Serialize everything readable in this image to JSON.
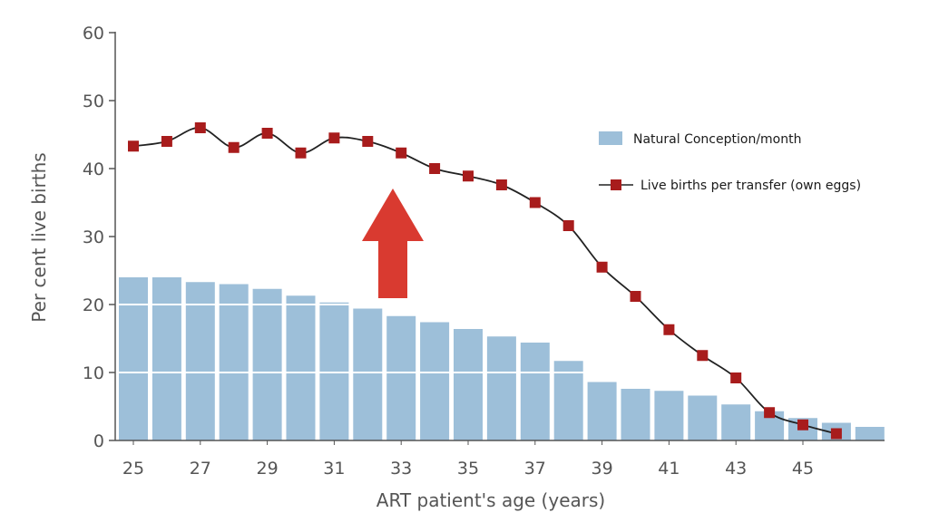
{
  "chart_data": {
    "type": "bar",
    "title": "",
    "xlabel": "ART patient's age (years)",
    "ylabel": "Per cent live births",
    "ylim": [
      0,
      60
    ],
    "yticks": [
      0,
      10,
      20,
      30,
      40,
      50,
      60
    ],
    "xticks": [
      25,
      27,
      29,
      31,
      33,
      35,
      37,
      39,
      41,
      43,
      45
    ],
    "legend_position": "right",
    "grid": false,
    "series": [
      {
        "name": "Natural Conception/month",
        "type": "bar",
        "color": "#9dbfd9",
        "points": [
          {
            "x": 25,
            "y": 24
          },
          {
            "x": 26,
            "y": 24
          },
          {
            "x": 27,
            "y": 23.3
          },
          {
            "x": 28,
            "y": 23
          },
          {
            "x": 29,
            "y": 22.3
          },
          {
            "x": 30,
            "y": 21.3
          },
          {
            "x": 31,
            "y": 20.3
          },
          {
            "x": 32,
            "y": 19.4
          },
          {
            "x": 33,
            "y": 18.3
          },
          {
            "x": 34,
            "y": 17.4
          },
          {
            "x": 35,
            "y": 16.4
          },
          {
            "x": 36,
            "y": 15.3
          },
          {
            "x": 37,
            "y": 14.4
          },
          {
            "x": 38,
            "y": 11.7
          },
          {
            "x": 39,
            "y": 8.6
          },
          {
            "x": 40,
            "y": 7.6
          },
          {
            "x": 41,
            "y": 7.3
          },
          {
            "x": 42,
            "y": 6.6
          },
          {
            "x": 43,
            "y": 5.3
          },
          {
            "x": 44,
            "y": 4.3
          },
          {
            "x": 45,
            "y": 3.3
          },
          {
            "x": 46,
            "y": 2.6
          },
          {
            "x": 47,
            "y": 2
          }
        ]
      },
      {
        "name": "Live births per transfer (own eggs)",
        "type": "line",
        "color": "#222222",
        "marker_color": "#a81c1c",
        "points": [
          {
            "x": 25,
            "y": 43.3
          },
          {
            "x": 26,
            "y": 44
          },
          {
            "x": 27,
            "y": 46
          },
          {
            "x": 28,
            "y": 43.1
          },
          {
            "x": 29,
            "y": 45.2
          },
          {
            "x": 30,
            "y": 42.3
          },
          {
            "x": 31,
            "y": 44.5
          },
          {
            "x": 32,
            "y": 44
          },
          {
            "x": 33,
            "y": 42.3
          },
          {
            "x": 34,
            "y": 40
          },
          {
            "x": 35,
            "y": 38.9
          },
          {
            "x": 36,
            "y": 37.6
          },
          {
            "x": 37,
            "y": 35
          },
          {
            "x": 38,
            "y": 31.6
          },
          {
            "x": 39,
            "y": 25.5
          },
          {
            "x": 40,
            "y": 21.2
          },
          {
            "x": 41,
            "y": 16.3
          },
          {
            "x": 42,
            "y": 12.5
          },
          {
            "x": 43,
            "y": 9.2
          },
          {
            "x": 44,
            "y": 4.1
          },
          {
            "x": 45,
            "y": 2.3
          },
          {
            "x": 46,
            "y": 1
          }
        ]
      }
    ],
    "annotations": [
      {
        "type": "arrow",
        "direction": "up",
        "color": "#d93a30"
      }
    ]
  }
}
